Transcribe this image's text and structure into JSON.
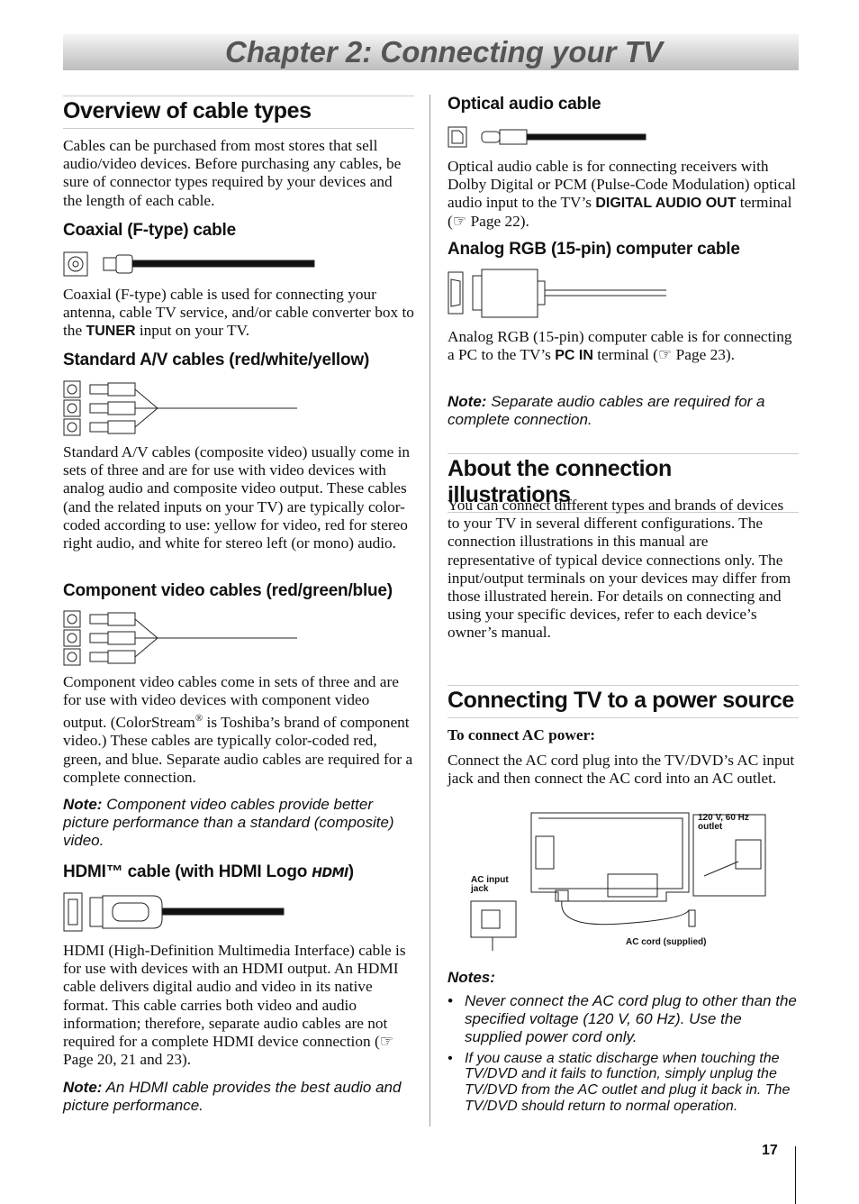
{
  "chapter_title": "Chapter 2: Connecting your TV",
  "overview": {
    "heading": "Overview of cable types",
    "text": "Cables can be purchased from most stores that sell audio/video devices. Before purchasing any cables, be sure of connector types required by your devices and the length of each cable."
  },
  "coaxial": {
    "heading": "Coaxial (F-type) cable",
    "text": [
      "Coaxial (F-type) cable is used for connecting your antenna, cable TV service, and/or cable converter box to the ",
      "TUNER",
      " input on your TV."
    ]
  },
  "av": {
    "heading": "Standard A/V cables (red/white/yellow)",
    "text": "Standard A/V cables (composite video) usually come in sets of three and are for use with video devices with analog audio and composite video output. These cables (and the related inputs on your TV) are typically color-coded according to use: yellow for video, red for stereo right audio, and white for stereo left (or mono) audio."
  },
  "component": {
    "heading": "Component video cables (red/green/blue)",
    "text": [
      "Component video cables come in sets of three and are for use with video devices with component video output. (ColorStream",
      "®",
      " is Toshiba’s brand of component video.) These cables are typically color-coded red, green, and blue. Separate audio cables are required for a complete connection."
    ],
    "note_label": "Note:",
    "note": "Component video cables provide better picture performance than a standard (composite) video."
  },
  "hdmi": {
    "heading": "HDMI™ cable (with HDMI Logo",
    "logo": "HDMI",
    "heading_end": ")",
    "text": "HDMI (High-Definition Multimedia Interface) cable is for use with devices with an HDMI output. An HDMI cable delivers digital audio and video in its native format. This cable carries both video and audio information; therefore, separate audio cables are not required for a complete HDMI device connection (☞ Page 20, 21 and 23).",
    "note_label": "Note:",
    "note": "An HDMI cable provides the best audio and picture performance."
  },
  "optical": {
    "heading": "Optical audio cable",
    "text": [
      "Optical audio cable is for connecting receivers with Dolby Digital or PCM (Pulse-Code Modulation) optical audio input to the TV’s ",
      "DIGITAL AUDIO OUT",
      " terminal (☞ Page 22)."
    ]
  },
  "rgb": {
    "heading": "Analog RGB (15-pin) computer cable",
    "text": [
      "Analog RGB (15-pin) computer cable is for connecting a PC to the TV’s ",
      "PC IN",
      " terminal (☞ Page 23)."
    ],
    "note_label": "Note:",
    "note": "Separate audio cables are required for a complete connection."
  },
  "about": {
    "heading": "About the connection illustrations",
    "text": "You can connect different types and brands of devices to your TV in several different configurations. The connection illustrations in this manual are representative of typical device connections only. The input/output terminals on your devices may differ from those illustrated herein. For details on connecting and using your specific devices, refer to each device’s owner’s manual."
  },
  "power": {
    "heading": "Connecting TV to a power source",
    "subheading": "To connect AC power:",
    "text": "Connect the AC cord plug into the TV/DVD’s AC input jack and then connect the AC cord into an AC outlet.",
    "figure": {
      "outlet": "120 V, 60 Hz outlet",
      "jack": "AC input jack",
      "cord": "AC cord (supplied)"
    },
    "notes_heading": "Notes:",
    "notes": [
      "Never connect the AC cord plug to other than the specified voltage (120 V, 60 Hz). Use the supplied power cord only.",
      "If you cause a static discharge when touching the TV/DVD and it fails to function, simply unplug the TV/DVD from the AC outlet and plug it back in. The TV/DVD should return to normal operation."
    ]
  },
  "page_number": "17"
}
